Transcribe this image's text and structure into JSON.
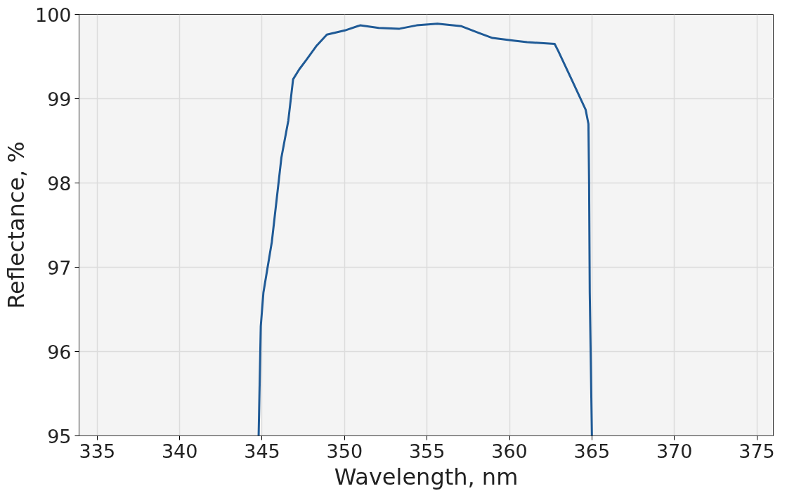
{
  "chart_data": {
    "type": "line",
    "xlabel": "Wavelength, nm",
    "ylabel": "Reflectance, %",
    "x": [
      344.79,
      344.92,
      345.08,
      345.59,
      346.17,
      346.59,
      346.88,
      347.26,
      347.68,
      348.31,
      348.93,
      350.02,
      350.94,
      352.07,
      353.33,
      354.37,
      355.63,
      357.09,
      358.14,
      358.97,
      360.23,
      361.07,
      362.74,
      362.95,
      363.79,
      364.62,
      364.79,
      364.83,
      364.87,
      365.0
    ],
    "series": [
      {
        "color": "#1f5a96",
        "values": [
          95.0,
          96.3,
          96.7,
          97.3,
          98.3,
          98.74,
          99.23,
          99.35,
          99.46,
          99.63,
          99.76,
          99.81,
          99.87,
          99.84,
          99.83,
          99.87,
          99.89,
          99.86,
          99.78,
          99.72,
          99.69,
          99.67,
          99.65,
          99.57,
          99.22,
          98.87,
          98.7,
          98.0,
          96.7,
          95.0
        ]
      }
    ],
    "xlim": [
      333.9,
      376
    ],
    "ylim": [
      95,
      100
    ],
    "xticks": [
      335,
      340,
      345,
      350,
      355,
      360,
      365,
      370,
      375
    ],
    "yticks": [
      95,
      96,
      97,
      98,
      99,
      100
    ],
    "grid": true
  }
}
